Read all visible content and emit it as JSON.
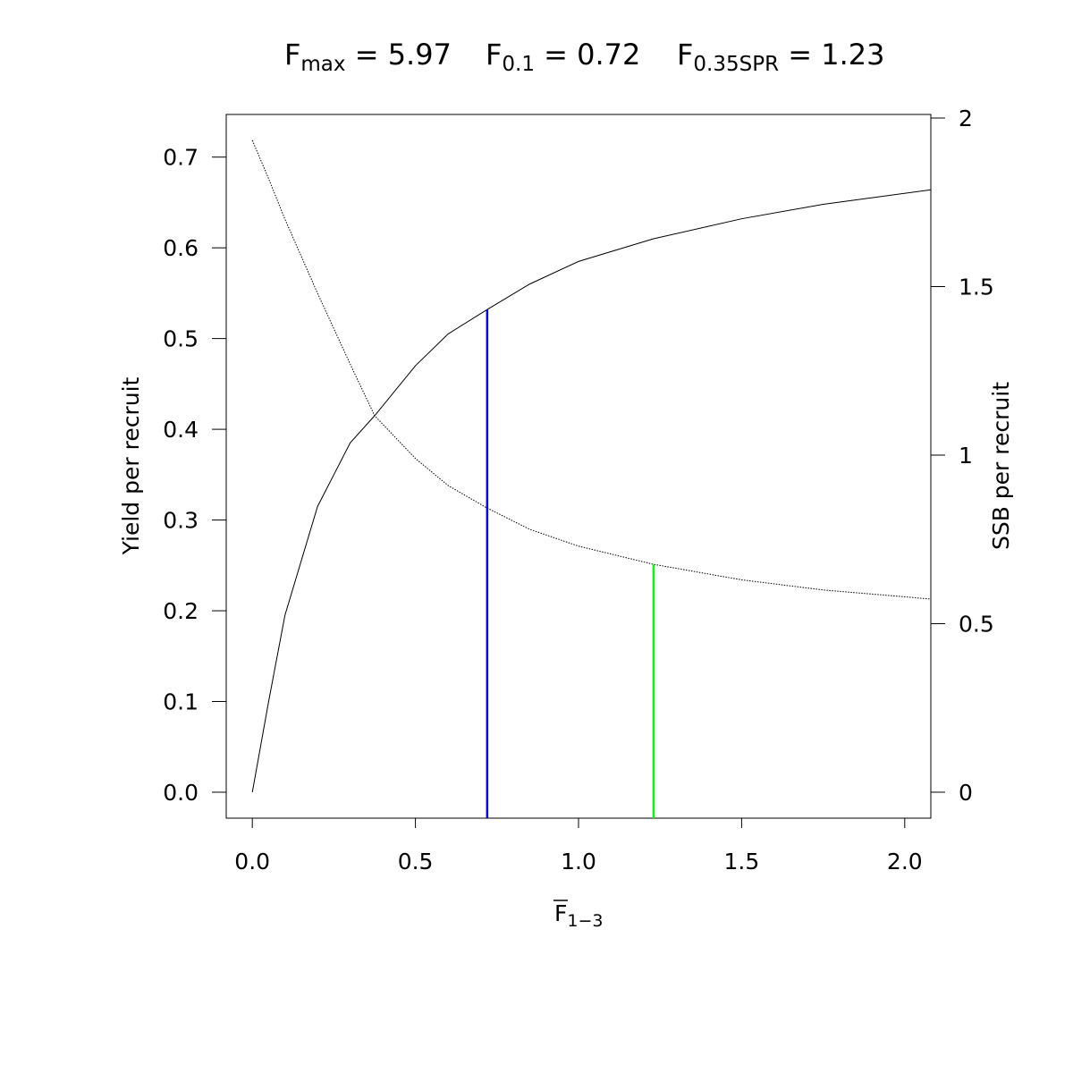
{
  "chart_data": {
    "type": "line",
    "title_parts": [
      {
        "base": "F",
        "sub": "max",
        "text": " = 5.97"
      },
      {
        "base": "F",
        "sub": "0.1",
        "text": " = 0.72"
      },
      {
        "base": "F",
        "sub": "0.35SPR",
        "text": " = 1.23"
      }
    ],
    "xlabel": {
      "base": "F",
      "sub": "1−3"
    },
    "ylabel": "Yield per recruit",
    "y2label": "SSB per recruit",
    "x": [
      0,
      0.05,
      0.1,
      0.2,
      0.3,
      0.375,
      0.5,
      0.6,
      0.72,
      0.85,
      1.0,
      1.23,
      1.5,
      1.75,
      2.08
    ],
    "series": [
      {
        "name": "Yield per recruit",
        "color": "#000000",
        "dash": "none",
        "values": [
          0,
          0.1,
          0.195,
          0.315,
          0.385,
          0.415,
          0.47,
          0.505,
          0.532,
          0.56,
          0.585,
          0.61,
          0.632,
          0.648,
          0.664
        ]
      },
      {
        "name": "SSB per recruit",
        "color": "#000000",
        "dash": "1.5 1.5",
        "axis": "y2",
        "values": [
          1.934,
          1.82,
          1.7,
          1.48,
          1.27,
          1.117,
          0.99,
          0.91,
          0.843,
          0.78,
          0.73,
          0.676,
          0.63,
          0.6,
          0.573
        ]
      }
    ],
    "reference_lines": [
      {
        "x": 0.72,
        "top": 0.532,
        "color": "#0000ff"
      },
      {
        "x": 1.23,
        "top": 0.676,
        "axis": "y2",
        "color": "#00ff00"
      }
    ],
    "xlim": [
      -0.08,
      2.08
    ],
    "ylim": [
      -0.0286,
      0.747
    ],
    "y2lim": [
      -0.077,
      2.0106
    ],
    "xticks": [
      {
        "value": 0,
        "label": "0.0"
      },
      0.5,
      {
        "value": 1,
        "label": "1.0"
      },
      1.5,
      {
        "value": 2,
        "label": "2.0"
      }
    ],
    "yticks": [
      {
        "value": 0,
        "label": "0.0"
      },
      0.1,
      0.2,
      0.3,
      0.4,
      0.5,
      0.6,
      0.7
    ],
    "y2ticks": [
      0,
      0.5,
      1,
      1.5,
      2
    ]
  }
}
